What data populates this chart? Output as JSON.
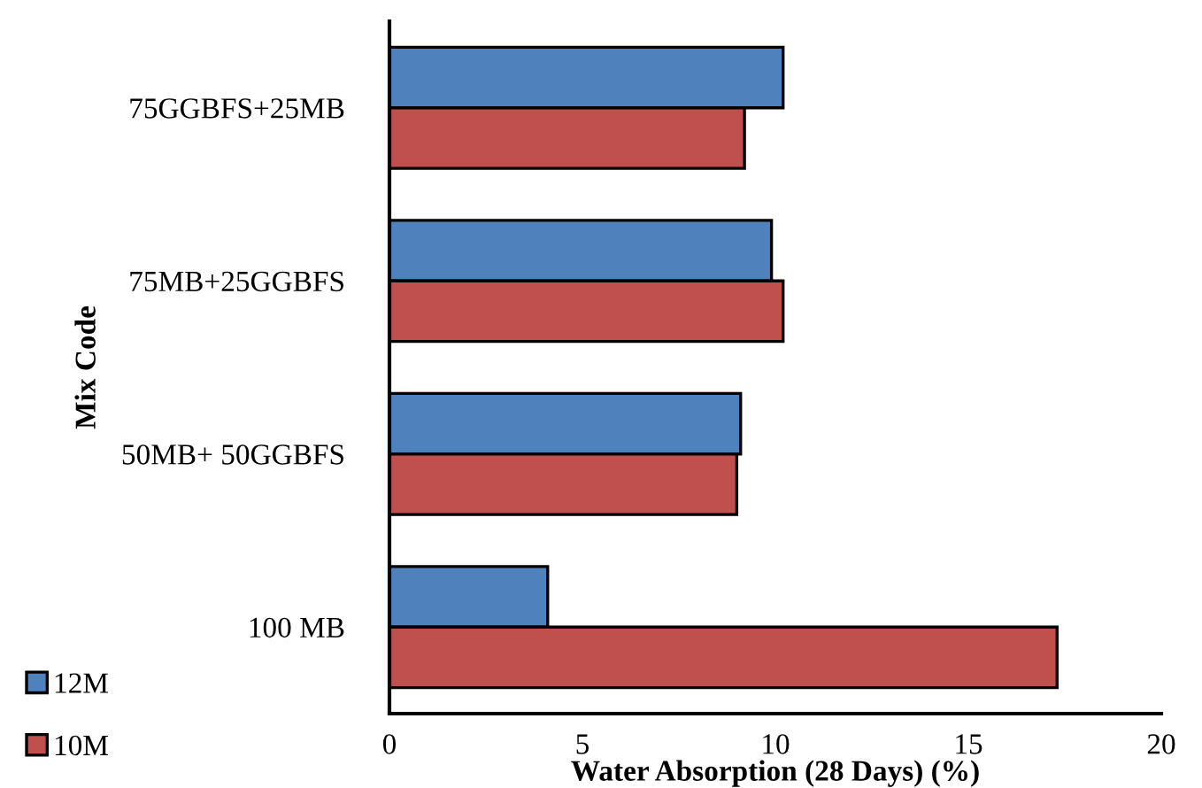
{
  "chart_data": {
    "type": "bar",
    "orientation": "horizontal",
    "xlabel": "Water Absorption (28 Days) (%)",
    "ylabel": "Mix Code",
    "categories": [
      "75GGBFS+25MB",
      "75MB+25GGBFS",
      "50MB+ 50GGBFS",
      "100 MB"
    ],
    "series": [
      {
        "name": "12M",
        "color": "#4f81bd",
        "values": [
          10.2,
          9.9,
          9.1,
          4.1
        ]
      },
      {
        "name": "10M",
        "color": "#c0504d",
        "values": [
          9.2,
          10.2,
          9.0,
          17.3
        ]
      }
    ],
    "xlim": [
      0,
      20
    ],
    "xticks": [
      0,
      5,
      10,
      15,
      20
    ],
    "grid": false,
    "legend": "bottom left"
  }
}
